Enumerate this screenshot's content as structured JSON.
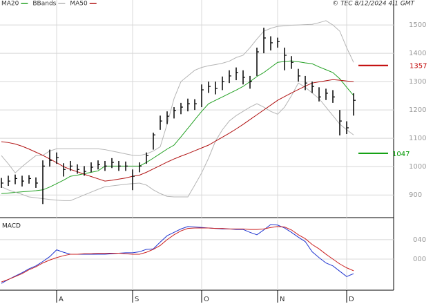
{
  "chart_data": [
    {
      "type": "ohlc",
      "source": "© TEC 8/12/2024 4:1 GMT",
      "categories": [
        null,
        null,
        null,
        null,
        null,
        null,
        null,
        null,
        "A",
        null,
        null,
        null,
        null,
        null,
        null,
        null,
        null,
        null,
        null,
        "S",
        null,
        null,
        null,
        null,
        null,
        null,
        null,
        null,
        null,
        "O",
        null,
        null,
        null,
        null,
        null,
        null,
        null,
        null,
        null,
        null,
        "N",
        null,
        null,
        null,
        null,
        null,
        null,
        null,
        null,
        null,
        "D",
        null
      ],
      "high": [
        960,
        968,
        972,
        968,
        970,
        962,
        1022,
        1060,
        1050,
        1012,
        1020,
        1008,
        1002,
        1015,
        1022,
        1020,
        1030,
        1020,
        1018,
        990,
        1015,
        1050,
        1120,
        1180,
        1195,
        1210,
        1225,
        1240,
        1238,
        1290,
        1300,
        1300,
        1318,
        1340,
        1350,
        1340,
        1320,
        1420,
        1490,
        1460,
        1455,
        1420,
        1390,
        1345,
        1320,
        1300,
        1280,
        1275,
        1270,
        1200,
        1160,
        1259
      ],
      "low": [
        925,
        932,
        938,
        930,
        940,
        925,
        868,
        1000,
        1010,
        965,
        985,
        975,
        968,
        980,
        990,
        985,
        995,
        985,
        985,
        917,
        980,
        1010,
        1060,
        1130,
        1150,
        1170,
        1185,
        1195,
        1200,
        1210,
        1260,
        1255,
        1270,
        1295,
        1305,
        1290,
        1275,
        1320,
        1400,
        1410,
        1420,
        1340,
        1345,
        1300,
        1270,
        1260,
        1230,
        1235,
        1225,
        1110,
        1115,
        1180
      ],
      "close": [
        942,
        949,
        958,
        949,
        958,
        942,
        1002,
        1022,
        1032,
        990,
        1002,
        990,
        983,
        998,
        1007,
        1002,
        1015,
        1002,
        1002,
        966,
        1002,
        1039,
        1112,
        1161,
        1178,
        1198,
        1210,
        1222,
        1222,
        1271,
        1283,
        1276,
        1300,
        1320,
        1332,
        1315,
        1300,
        1405,
        1454,
        1437,
        1441,
        1393,
        1368,
        1320,
        1295,
        1283,
        1246,
        1259,
        1246,
        1161,
        1137,
        1234
      ],
      "color": "#000000",
      "series": [
        {
          "name": "MA20",
          "color": "#22a022",
          "values": [
            905,
            907,
            909,
            911,
            913,
            915,
            918,
            928,
            940,
            952,
            966,
            970,
            975,
            980,
            985,
            1002,
            1002,
            1002,
            1002,
            1002,
            1002,
            1015,
            1030,
            1046,
            1062,
            1076,
            1105,
            1135,
            1165,
            1195,
            1222,
            1234,
            1246,
            1258,
            1270,
            1283,
            1300,
            1318,
            1332,
            1350,
            1368,
            1371,
            1373,
            1370,
            1366,
            1363,
            1352,
            1342,
            1332,
            1310,
            1280,
            1251
          ]
        },
        {
          "name": "BBands",
          "color": "#b4b4b4",
          "values": [
            1039,
            1010,
            978,
            1000,
            1020,
            1039,
            1040,
            1055,
            1063,
            1063,
            1063,
            1063,
            1063,
            1063,
            1063,
            1060,
            1055,
            1050,
            1045,
            1040,
            1039,
            1045,
            1055,
            1070,
            1150,
            1240,
            1300,
            1320,
            1340,
            1350,
            1356,
            1360,
            1365,
            1372,
            1385,
            1393,
            1420,
            1450,
            1478,
            1488,
            1495,
            1497,
            1499,
            1500,
            1501,
            1502,
            1508,
            1515,
            1500,
            1478,
            1420,
            1368
          ],
          "lower": [
            929,
            918,
            910,
            902,
            893,
            890,
            887,
            884,
            882,
            880,
            880,
            890,
            900,
            910,
            920,
            929,
            932,
            935,
            938,
            940,
            942,
            935,
            918,
            905,
            895,
            893,
            893,
            893,
            935,
            978,
            1030,
            1090,
            1130,
            1161,
            1180,
            1195,
            1210,
            1222,
            1210,
            1195,
            1185,
            1210,
            1250,
            1295,
            1280,
            1260,
            1240,
            1210,
            1180,
            1150,
            1130,
            1112
          ]
        },
        {
          "name": "MA50",
          "color": "#b01010",
          "values": [
            1088,
            1085,
            1080,
            1072,
            1062,
            1051,
            1040,
            1027,
            1014,
            1000,
            990,
            982,
            973,
            965,
            957,
            949,
            952,
            956,
            960,
            966,
            970,
            980,
            992,
            1004,
            1016,
            1027,
            1037,
            1046,
            1056,
            1066,
            1076,
            1090,
            1104,
            1118,
            1133,
            1149,
            1166,
            1183,
            1200,
            1217,
            1234,
            1247,
            1260,
            1272,
            1284,
            1295,
            1299,
            1303,
            1307,
            1305,
            1302,
            1300
          ]
        }
      ],
      "levels": [
        {
          "value": 1357,
          "color": "#c00000"
        },
        {
          "value": 1047,
          "color": "#009900"
        }
      ],
      "ylim": [
        820,
        1588
      ],
      "yticks": [
        900,
        1000,
        1100,
        1200,
        1300,
        1400,
        1500
      ],
      "grid": true
    },
    {
      "type": "line",
      "title": "MACD",
      "series": [
        {
          "color": "#2035d0",
          "values": [
            -50,
            -42,
            -35,
            -28,
            -20,
            -14,
            -5,
            5,
            19,
            14,
            10,
            10,
            10,
            10,
            10,
            10,
            11,
            12,
            13,
            13,
            15,
            20,
            21,
            35,
            48,
            55,
            62,
            67,
            66,
            65,
            64,
            63,
            62,
            62,
            61,
            61,
            55,
            50,
            60,
            71,
            70,
            64,
            55,
            45,
            36,
            15,
            3,
            -8,
            -14,
            -25,
            -36,
            -30
          ]
        },
        {
          "color": "#cc2020",
          "values": [
            -47,
            -42,
            -36,
            -30,
            -22,
            -16,
            -8,
            -2,
            3,
            7,
            10,
            10,
            11,
            11,
            12,
            12,
            12,
            12,
            11,
            10,
            10,
            14,
            20,
            28,
            40,
            50,
            58,
            63,
            64,
            64,
            64,
            63,
            63,
            62,
            62,
            62,
            61,
            61,
            62,
            65,
            67,
            66,
            60,
            50,
            42,
            30,
            21,
            10,
            0,
            -10,
            -18,
            -24
          ]
        }
      ],
      "ylim": [
        -64,
        81
      ],
      "yticks": [
        {
          "value": 40,
          "label": "040"
        },
        {
          "value": 0,
          "label": "000"
        }
      ],
      "grid": true
    }
  ]
}
